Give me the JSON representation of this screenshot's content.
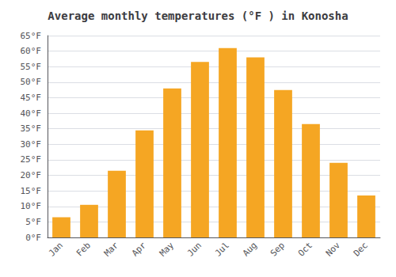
{
  "chart_data": {
    "type": "bar",
    "title": "Average monthly temperatures (°F ) in Konosha",
    "categories": [
      "Jan",
      "Feb",
      "Mar",
      "Apr",
      "May",
      "Jun",
      "Jul",
      "Aug",
      "Sep",
      "Oct",
      "Nov",
      "Dec"
    ],
    "values": [
      6.5,
      10.5,
      21.5,
      34.5,
      48.0,
      56.5,
      61.0,
      58.0,
      47.5,
      36.5,
      24.0,
      13.5
    ],
    "color": "#F5A623",
    "ylim": [
      0,
      65
    ],
    "yticks": [
      {
        "value": 0,
        "label": "0°F"
      },
      {
        "value": 5,
        "label": "5°F"
      },
      {
        "value": 10,
        "label": "10°F"
      },
      {
        "value": 15,
        "label": "15°F"
      },
      {
        "value": 20,
        "label": "20°F"
      },
      {
        "value": 25,
        "label": "25°F"
      },
      {
        "value": 30,
        "label": "30°F"
      },
      {
        "value": 35,
        "label": "35°F"
      },
      {
        "value": 40,
        "label": "40°F"
      },
      {
        "value": 45,
        "label": "45°F"
      },
      {
        "value": 50,
        "label": "50°F"
      },
      {
        "value": 55,
        "label": "55°F"
      },
      {
        "value": 60,
        "label": "60°F"
      },
      {
        "value": 65,
        "label": "65°F"
      }
    ],
    "grid": true
  }
}
